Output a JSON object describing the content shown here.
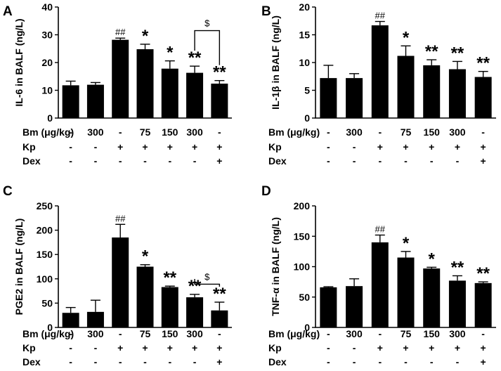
{
  "chart_data": [
    {
      "panel": "A",
      "type": "bar",
      "ylabel": "IL-6 in BALF (ng/L)",
      "ylim": [
        0,
        40
      ],
      "yticks": [
        0,
        10,
        20,
        30,
        40
      ],
      "ytick_labels": [
        "0",
        "10",
        "20",
        "30",
        "40"
      ],
      "values": [
        11.8,
        12.0,
        28.2,
        24.8,
        17.8,
        16.3,
        12.4
      ],
      "errors": [
        1.5,
        0.8,
        0.6,
        1.8,
        2.8,
        2.4,
        1.1
      ],
      "annotations": [
        "",
        "",
        "##",
        "*",
        "*",
        "**",
        "**"
      ],
      "bracket": {
        "from": 5,
        "to": 6,
        "label": "$",
        "y": 31.5
      }
    },
    {
      "panel": "B",
      "type": "bar",
      "ylabel": "IL-1β in BALF (ng/L)",
      "ylim": [
        0,
        20
      ],
      "yticks": [
        0,
        5,
        10,
        15,
        20
      ],
      "ytick_labels": [
        "0",
        "5",
        "10",
        "15",
        "20"
      ],
      "values": [
        7.2,
        7.2,
        16.7,
        11.2,
        9.5,
        8.8,
        7.4
      ],
      "errors": [
        2.3,
        0.8,
        0.7,
        1.8,
        1.0,
        1.4,
        1.0
      ],
      "annotations": [
        "",
        "",
        "##",
        "*",
        "**",
        "**",
        "**"
      ]
    },
    {
      "panel": "C",
      "type": "bar",
      "ylabel": "PGE2 in BALF (ng/L)",
      "ylim": [
        0,
        250
      ],
      "yticks": [
        0,
        50,
        100,
        150,
        200,
        250
      ],
      "ytick_labels": [
        "0",
        "50",
        "100",
        "150",
        "200",
        "250"
      ],
      "values": [
        30,
        32,
        185,
        125,
        83,
        62,
        35
      ],
      "errors": [
        11,
        24,
        27,
        4,
        2,
        6,
        17
      ],
      "annotations": [
        "",
        "",
        "##",
        "*",
        "**",
        "**",
        "**"
      ],
      "bracket": {
        "from": 5,
        "to": 6,
        "label": "$",
        "y": 89
      }
    },
    {
      "panel": "D",
      "type": "bar",
      "ylabel": "TNF-α in BALF (ng/L)",
      "ylim": [
        0,
        200
      ],
      "yticks": [
        0,
        50,
        100,
        150,
        200
      ],
      "ytick_labels": [
        "0",
        "50",
        "100",
        "150",
        "200"
      ],
      "values": [
        66,
        68,
        140,
        115,
        97,
        77,
        73
      ],
      "errors": [
        1,
        12,
        12,
        10,
        2,
        8,
        2
      ],
      "annotations": [
        "",
        "",
        "##",
        "*",
        "*",
        "**",
        "**"
      ]
    }
  ],
  "treatment_table": {
    "rows": [
      {
        "label": "Bm (μg/kg)",
        "values": [
          "-",
          "300",
          "-",
          "75",
          "150",
          "300",
          "-"
        ]
      },
      {
        "label": "Kp",
        "values": [
          "-",
          "-",
          "+",
          "+",
          "+",
          "+",
          "+"
        ]
      },
      {
        "label": "Dex",
        "values": [
          "-",
          "-",
          "-",
          "-",
          "-",
          "-",
          "+"
        ]
      }
    ]
  }
}
